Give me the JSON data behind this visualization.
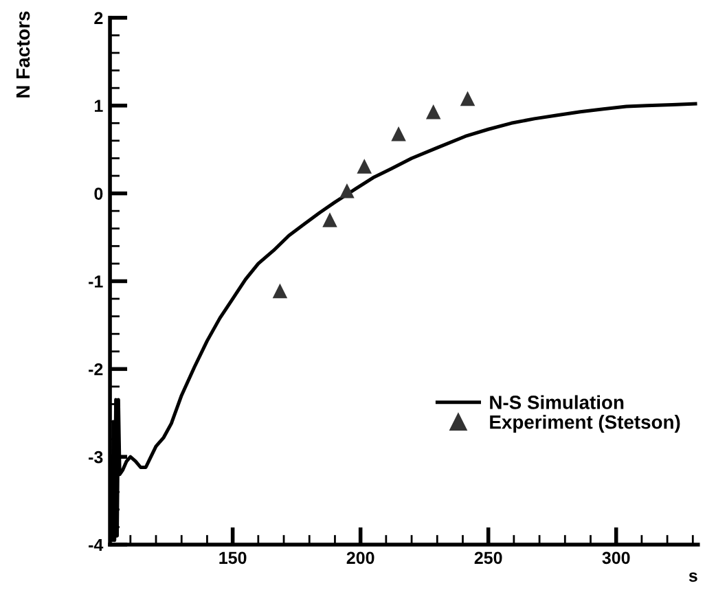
{
  "chart_data": {
    "type": "line",
    "xlabel": "s",
    "ylabel": "N Factors",
    "xlim": [
      102,
      332
    ],
    "xticks": [
      150,
      200,
      250,
      300
    ],
    "ylim": [
      -4,
      2
    ],
    "yticks": [
      -4,
      -3,
      -2,
      -1,
      0,
      1,
      2
    ],
    "grid": false,
    "legend": "bottom right",
    "series": [
      {
        "name": "N-S Simulation",
        "color": "#000000",
        "marker": "none",
        "line_style": "solid",
        "x": [
          102.5,
          103,
          103.3,
          103.8,
          104.3,
          104.8,
          105.3,
          105.8,
          107,
          108.5,
          110,
          112,
          114,
          116,
          118,
          120,
          123,
          126,
          130,
          135,
          140,
          145,
          150,
          155,
          160,
          166,
          172,
          178,
          184,
          190,
          198,
          205,
          212,
          220,
          230,
          241,
          250,
          259,
          268,
          277,
          286,
          295,
          304,
          312,
          322,
          331
        ],
        "values": [
          -3.0,
          -3.95,
          -2.6,
          -3.95,
          -2.35,
          -3.9,
          -2.35,
          -3.2,
          -3.15,
          -3.05,
          -3.0,
          -3.05,
          -3.12,
          -3.12,
          -3.0,
          -2.88,
          -2.78,
          -2.62,
          -2.3,
          -1.98,
          -1.68,
          -1.42,
          -1.2,
          -0.98,
          -0.8,
          -0.65,
          -0.48,
          -0.35,
          -0.22,
          -0.1,
          0.05,
          0.18,
          0.28,
          0.4,
          0.52,
          0.65,
          0.73,
          0.8,
          0.85,
          0.89,
          0.93,
          0.96,
          0.99,
          1.0,
          1.01,
          1.02
        ]
      },
      {
        "name": "Experiment (Stetson)",
        "type": "scatter",
        "color": "#333333",
        "marker": "triangle",
        "x": [
          168.5,
          188,
          194.7,
          201.5,
          214.9,
          228.5,
          241.9
        ],
        "values": [
          -1.11,
          -0.3,
          0.03,
          0.31,
          0.68,
          0.93,
          1.08
        ]
      }
    ]
  }
}
